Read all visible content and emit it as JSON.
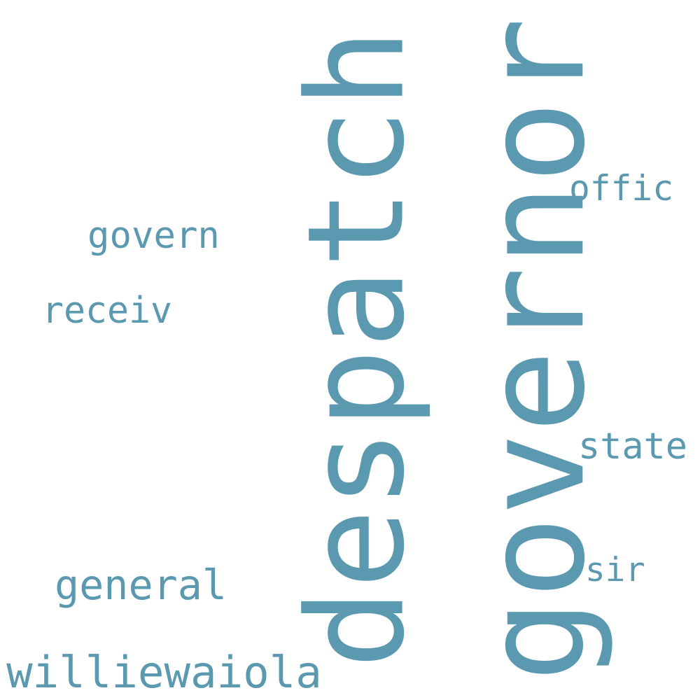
{
  "cloud": {
    "color": "#5b99b0",
    "background": "#ffffff",
    "words": {
      "despatch": "despatch",
      "governor": "governor",
      "general": "general",
      "williewaiola": "williewaiola",
      "govern": "govern",
      "receiv": "receiv",
      "offic": "offic",
      "state": "state",
      "sir": "sir"
    }
  }
}
